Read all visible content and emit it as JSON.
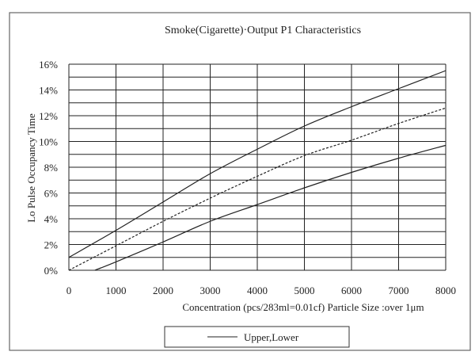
{
  "chart_data": {
    "type": "line",
    "title": "Smoke(Cigarette)·Output P1 Characteristics",
    "xlabel": "Concentration (pcs/283ml=0.01cf)  Particle Size :over 1μm",
    "ylabel": "Lo Pulse Occupancy  Time",
    "xlim": [
      0,
      8000
    ],
    "ylim": [
      0,
      16
    ],
    "x_ticks": [
      "0",
      "1000",
      "2000",
      "3000",
      "4000",
      "5000",
      "6000",
      "7000",
      "8000"
    ],
    "y_ticks": [
      "0%",
      "2%",
      "4%",
      "6%",
      "8%",
      "10%",
      "12%",
      "14%",
      "16%"
    ],
    "grid": true,
    "legend": {
      "position": "bottom",
      "entries": [
        "Upper,Lower"
      ]
    },
    "series": [
      {
        "style": "solid",
        "color": "#222222",
        "x": [
          0,
          1000,
          2000,
          3000,
          4000,
          5000,
          6000,
          7000,
          8000
        ],
        "y": [
          1.0,
          3.1,
          5.3,
          7.5,
          9.4,
          11.2,
          12.7,
          14.1,
          15.5
        ]
      },
      {
        "style": "dashed",
        "color": "#222222",
        "x": [
          0,
          1000,
          2000,
          3000,
          4000,
          5000,
          6000,
          7000,
          8000
        ],
        "y": [
          0,
          1.9,
          3.8,
          5.6,
          7.3,
          8.9,
          10.1,
          11.4,
          12.6
        ]
      },
      {
        "style": "solid",
        "color": "#222222",
        "x": [
          550,
          1000,
          2000,
          3000,
          4000,
          5000,
          6000,
          7000,
          8000
        ],
        "y": [
          0,
          0.65,
          2.2,
          3.8,
          5.1,
          6.4,
          7.6,
          8.7,
          9.7
        ]
      }
    ]
  }
}
